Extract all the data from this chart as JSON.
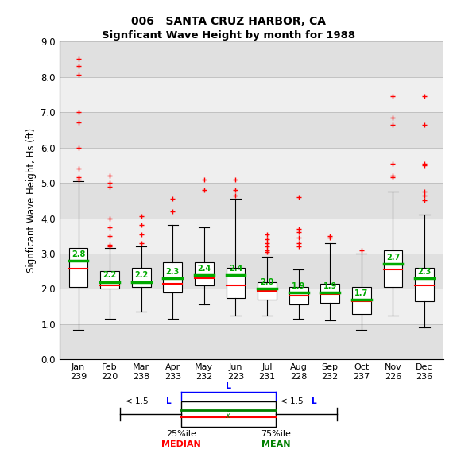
{
  "title1": "006   SANTA CRUZ HARBOR, CA",
  "title2": "Signficant Wave Height by month for 1988",
  "ylabel": "Signficant Wave Height, Hs (ft)",
  "months": [
    "Jan",
    "Feb",
    "Mar",
    "Apr",
    "May",
    "Jun",
    "Jul",
    "Aug",
    "Sep",
    "Oct",
    "Nov",
    "Dec"
  ],
  "counts": [
    239,
    220,
    238,
    233,
    232,
    223,
    231,
    228,
    232,
    237,
    226,
    236
  ],
  "ylim": [
    0.0,
    9.0
  ],
  "yticks": [
    0.0,
    1.0,
    2.0,
    3.0,
    4.0,
    5.0,
    6.0,
    7.0,
    8.0,
    9.0
  ],
  "box_color": "white",
  "median_color": "#ff0000",
  "mean_color": "#00aa00",
  "flier_color": "#ff0000",
  "boxes": [
    {
      "q1": 2.05,
      "median": 2.58,
      "q3": 3.15,
      "mean": 2.8,
      "whisker_low": 0.85,
      "whisker_high": 5.05,
      "fliers": [
        8.5,
        8.3,
        8.05,
        7.0,
        6.7,
        6.0,
        5.4,
        5.15,
        5.1
      ]
    },
    {
      "q1": 2.0,
      "median": 2.1,
      "q3": 2.5,
      "mean": 2.2,
      "whisker_low": 1.15,
      "whisker_high": 3.15,
      "fliers": [
        5.2,
        5.0,
        4.9,
        4.0,
        3.75,
        3.5,
        3.25,
        3.2
      ]
    },
    {
      "q1": 2.05,
      "median": 2.2,
      "q3": 2.6,
      "mean": 2.2,
      "whisker_low": 1.35,
      "whisker_high": 3.2,
      "fliers": [
        4.05,
        3.8,
        3.55,
        3.3
      ]
    },
    {
      "q1": 1.9,
      "median": 2.15,
      "q3": 2.75,
      "mean": 2.3,
      "whisker_low": 1.15,
      "whisker_high": 3.8,
      "fliers": [
        4.55,
        4.2
      ]
    },
    {
      "q1": 2.1,
      "median": 2.3,
      "q3": 2.75,
      "mean": 2.4,
      "whisker_low": 1.55,
      "whisker_high": 3.75,
      "fliers": [
        5.1,
        4.8
      ]
    },
    {
      "q1": 1.75,
      "median": 2.1,
      "q3": 2.6,
      "mean": 2.4,
      "whisker_low": 1.25,
      "whisker_high": 4.55,
      "fliers": [
        5.1,
        4.8,
        4.65
      ]
    },
    {
      "q1": 1.7,
      "median": 1.95,
      "q3": 2.2,
      "mean": 2.0,
      "whisker_low": 1.25,
      "whisker_high": 2.9,
      "fliers": [
        3.55,
        3.4,
        3.3,
        3.2,
        3.1,
        3.05
      ]
    },
    {
      "q1": 1.55,
      "median": 1.8,
      "q3": 2.05,
      "mean": 1.9,
      "whisker_low": 1.15,
      "whisker_high": 2.55,
      "fliers": [
        4.6,
        3.7,
        3.6,
        3.45,
        3.3,
        3.2
      ]
    },
    {
      "q1": 1.6,
      "median": 1.85,
      "q3": 2.15,
      "mean": 1.9,
      "whisker_low": 1.1,
      "whisker_high": 3.3,
      "fliers": [
        3.5,
        3.45
      ]
    },
    {
      "q1": 1.3,
      "median": 1.65,
      "q3": 2.05,
      "mean": 1.7,
      "whisker_low": 0.85,
      "whisker_high": 3.0,
      "fliers": [
        3.1
      ]
    },
    {
      "q1": 2.05,
      "median": 2.55,
      "q3": 3.1,
      "mean": 2.7,
      "whisker_low": 1.25,
      "whisker_high": 4.75,
      "fliers": [
        7.45,
        6.85,
        6.65,
        5.55,
        5.2,
        5.15
      ]
    },
    {
      "q1": 1.65,
      "median": 2.1,
      "q3": 2.6,
      "mean": 2.3,
      "whisker_low": 0.9,
      "whisker_high": 4.1,
      "fliers": [
        7.45,
        6.65,
        5.55,
        5.5,
        4.75,
        4.65,
        4.5
      ]
    }
  ],
  "band_colors": [
    "#e0e0e0",
    "#efefef"
  ],
  "grid_color": "#bbbbbb"
}
